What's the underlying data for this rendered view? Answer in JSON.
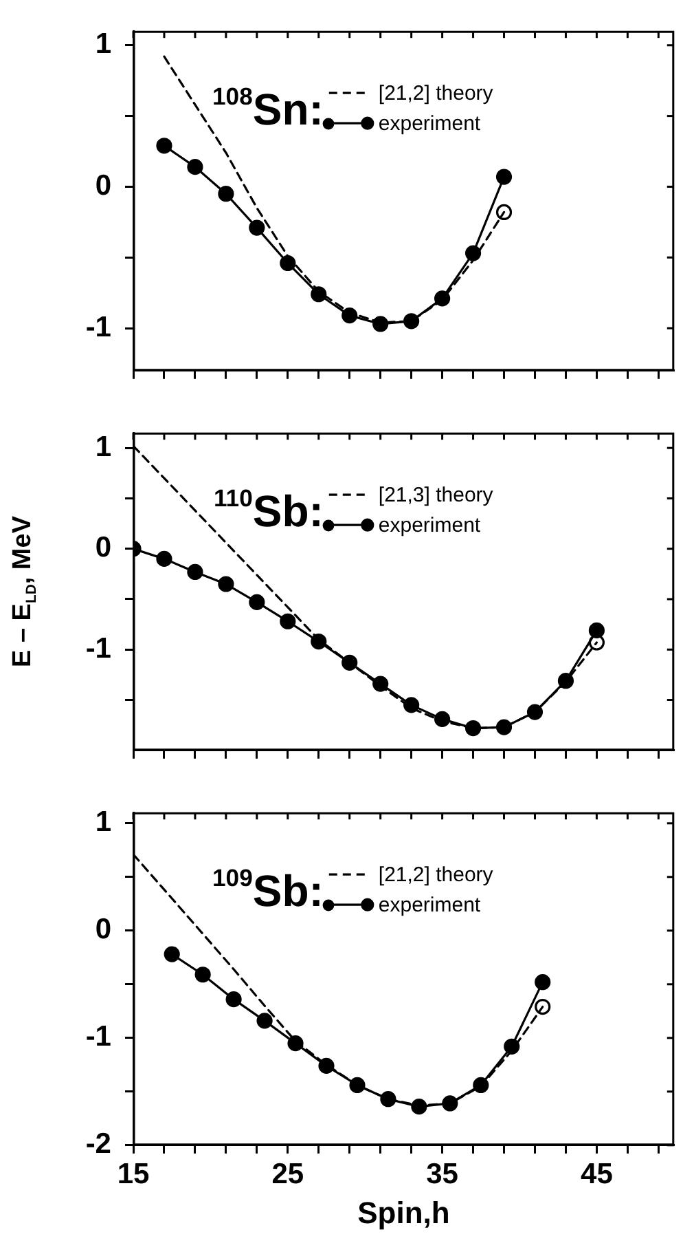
{
  "chart_data": [
    {
      "type": "line",
      "annotations": [
        "$^{108}$Sn:"
      ],
      "xlim": [
        15,
        50
      ],
      "xticks": [
        15,
        {
          "value": 17,
          "label": null
        },
        {
          "value": 19,
          "label": null
        },
        {
          "value": 21,
          "label": null
        },
        {
          "value": 23,
          "label": null
        },
        25,
        {
          "value": 27,
          "label": null
        },
        {
          "value": 29,
          "label": null
        },
        {
          "value": 31,
          "label": null
        },
        {
          "value": 33,
          "label": null
        },
        35,
        {
          "value": 37,
          "label": null
        },
        {
          "value": 39,
          "label": null
        },
        {
          "value": 41,
          "label": null
        },
        {
          "value": 43,
          "label": null
        },
        45,
        {
          "value": 47,
          "label": null
        },
        {
          "value": 49,
          "label": null
        }
      ],
      "ylim": [
        -1.3,
        1.1
      ],
      "yticks": [
        -1,
        {
          "value": -0.5,
          "label": null
        },
        0,
        {
          "value": 0.5,
          "label": null
        },
        1
      ],
      "tick_labels": "y",
      "legend": "top right",
      "grid": false,
      "series": [
        {
          "name": "[21,2] theory",
          "color": "#000000",
          "line_style": "dashed",
          "marker": "none",
          "x": [
            17,
            19,
            21,
            23,
            25,
            27,
            29,
            31,
            33,
            35,
            37,
            39
          ],
          "values": [
            0.92,
            0.58,
            0.24,
            -0.15,
            -0.49,
            -0.74,
            -0.89,
            -0.96,
            -0.95,
            -0.8,
            -0.52,
            -0.18
          ]
        },
        {
          "name": "experiment",
          "color": "#000000",
          "line_style": "solid",
          "marker": "circle",
          "x": [
            17,
            19,
            21,
            23,
            25,
            27,
            29,
            31,
            33,
            35,
            37,
            39
          ],
          "values": [
            0.29,
            0.14,
            -0.05,
            -0.29,
            -0.54,
            -0.76,
            -0.91,
            -0.97,
            -0.95,
            -0.79,
            -0.47,
            0.07
          ]
        },
        {
          "type": "scatter",
          "color": "#000000",
          "marker": "circle",
          "x": [
            39
          ],
          "values": [
            -0.18
          ]
        }
      ]
    },
    {
      "type": "line",
      "annotations": [
        "$^{110}$Sb:"
      ],
      "ylabel": "E – E$_{LD}$, MeV",
      "xlim": [
        15,
        50
      ],
      "xticks": [
        15,
        {
          "value": 17,
          "label": null
        },
        {
          "value": 19,
          "label": null
        },
        {
          "value": 21,
          "label": null
        },
        {
          "value": 23,
          "label": null
        },
        25,
        {
          "value": 27,
          "label": null
        },
        {
          "value": 29,
          "label": null
        },
        {
          "value": 31,
          "label": null
        },
        {
          "value": 33,
          "label": null
        },
        35,
        {
          "value": 37,
          "label": null
        },
        {
          "value": 39,
          "label": null
        },
        {
          "value": 41,
          "label": null
        },
        {
          "value": 43,
          "label": null
        },
        45,
        {
          "value": 47,
          "label": null
        },
        {
          "value": 49,
          "label": null
        }
      ],
      "ylim": [
        -2,
        1.15
      ],
      "yticks": [
        {
          "value": -1.5,
          "label": null
        },
        -1,
        {
          "value": -0.5,
          "label": null
        },
        0,
        {
          "value": 0.5,
          "label": null
        },
        1
      ],
      "tick_labels": "y",
      "legend": "top right",
      "grid": false,
      "series": [
        {
          "name": "[21,3] theory",
          "color": "#000000",
          "line_style": "dashed",
          "marker": "none",
          "x": [
            15,
            17,
            19,
            21,
            23,
            25,
            27,
            29,
            31,
            33,
            35,
            37,
            39,
            41,
            43,
            45
          ],
          "values": [
            1.02,
            0.7,
            0.38,
            0.06,
            -0.26,
            -0.58,
            -0.9,
            -1.13,
            -1.36,
            -1.58,
            -1.71,
            -1.78,
            -1.77,
            -1.62,
            -1.32,
            -0.93
          ]
        },
        {
          "name": "experiment",
          "color": "#000000",
          "line_style": "solid",
          "marker": "circle",
          "x": [
            15,
            17,
            19,
            21,
            23,
            25,
            27,
            29,
            31,
            33,
            35,
            37,
            39,
            41,
            43,
            45
          ],
          "values": [
            0,
            -0.1,
            -0.23,
            -0.35,
            -0.53,
            -0.72,
            -0.92,
            -1.13,
            -1.34,
            -1.55,
            -1.69,
            -1.78,
            -1.77,
            -1.62,
            -1.31,
            -0.81
          ]
        },
        {
          "type": "scatter",
          "color": "#000000",
          "marker": "circle",
          "x": [
            45
          ],
          "values": [
            -0.93
          ]
        }
      ]
    },
    {
      "type": "line",
      "annotations": [
        "$^{109}$Sb:"
      ],
      "xlabel": "Spin,h",
      "xlim": [
        15,
        50
      ],
      "xticks": [
        15,
        {
          "value": 17,
          "label": null
        },
        {
          "value": 19,
          "label": null
        },
        {
          "value": 21,
          "label": null
        },
        {
          "value": 23,
          "label": null
        },
        25,
        {
          "value": 27,
          "label": null
        },
        {
          "value": 29,
          "label": null
        },
        {
          "value": 31,
          "label": null
        },
        {
          "value": 33,
          "label": null
        },
        35,
        {
          "value": 37,
          "label": null
        },
        {
          "value": 39,
          "label": null
        },
        {
          "value": 41,
          "label": null
        },
        {
          "value": 43,
          "label": null
        },
        45,
        {
          "value": 47,
          "label": null
        },
        {
          "value": 49,
          "label": null
        }
      ],
      "ylim": [
        -2,
        1.1
      ],
      "yticks": [
        -2,
        {
          "value": -1.5,
          "label": null
        },
        -1,
        {
          "value": -0.5,
          "label": null
        },
        0,
        {
          "value": 0.5,
          "label": null
        },
        1
      ],
      "legend": "top right",
      "grid": false,
      "series": [
        {
          "name": "[21,2] theory",
          "color": "#000000",
          "line_style": "dashed",
          "marker": "none",
          "x": [
            15,
            17.5,
            19.5,
            21.5,
            23.5,
            25.5,
            27.5,
            29.5,
            31.5,
            33.5,
            35.5,
            37.5,
            39.5,
            41.5
          ],
          "values": [
            0.71,
            0.3,
            -0.03,
            -0.36,
            -0.7,
            -1.03,
            -1.25,
            -1.44,
            -1.57,
            -1.63,
            -1.61,
            -1.45,
            -1.12,
            -0.71
          ]
        },
        {
          "name": "experiment",
          "color": "#000000",
          "line_style": "solid",
          "marker": "circle",
          "x": [
            17.5,
            19.5,
            21.5,
            23.5,
            25.5,
            27.5,
            29.5,
            31.5,
            33.5,
            35.5,
            37.5,
            39.5,
            41.5
          ],
          "values": [
            -0.22,
            -0.41,
            -0.64,
            -0.84,
            -1.05,
            -1.26,
            -1.44,
            -1.57,
            -1.64,
            -1.61,
            -1.44,
            -1.08,
            -0.48
          ]
        },
        {
          "type": "scatter",
          "color": "#000000",
          "marker": "circle",
          "x": [
            41.5
          ],
          "values": [
            -0.71
          ]
        }
      ]
    }
  ]
}
